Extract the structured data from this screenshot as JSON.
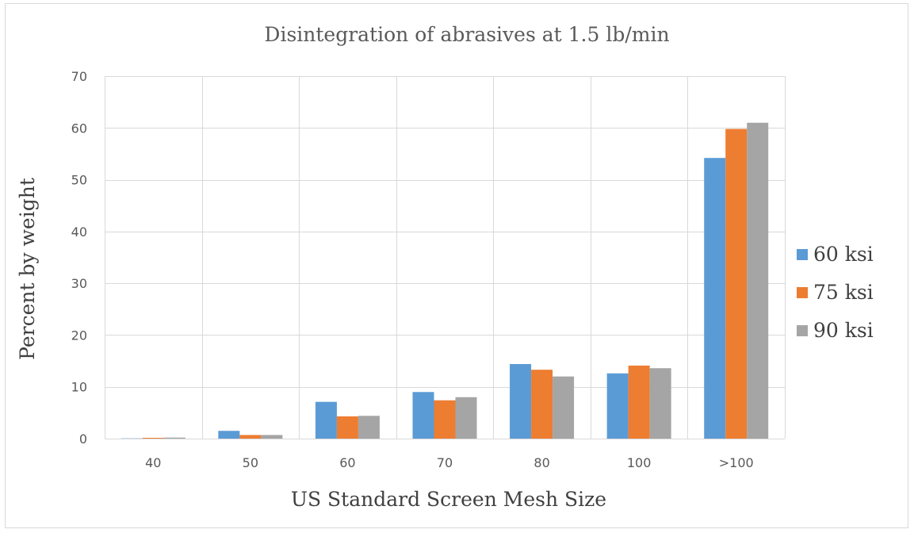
{
  "chart_data": {
    "type": "bar",
    "title": "Disintegration of abrasives at 1.5 lb/min",
    "xlabel": "US Standard Screen Mesh Size",
    "ylabel": "Percent by weight",
    "categories": [
      "40",
      "50",
      "60",
      "70",
      "80",
      "100",
      ">100"
    ],
    "ylim": [
      0,
      70
    ],
    "yticks": [
      0,
      10,
      20,
      30,
      40,
      50,
      60,
      70
    ],
    "grid": true,
    "legend_position": "right",
    "series": [
      {
        "name": "60 ksi",
        "color": "#5b9bd5",
        "values": [
          0.05,
          1.5,
          7.1,
          9.0,
          14.4,
          12.6,
          54.2
        ]
      },
      {
        "name": "75 ksi",
        "color": "#ed7d31",
        "values": [
          0.15,
          0.7,
          4.3,
          7.4,
          13.3,
          14.1,
          59.8
        ]
      },
      {
        "name": "90 ksi",
        "color": "#a5a5a5",
        "values": [
          0.2,
          0.7,
          4.4,
          8.0,
          12.0,
          13.6,
          61.0
        ]
      }
    ]
  }
}
